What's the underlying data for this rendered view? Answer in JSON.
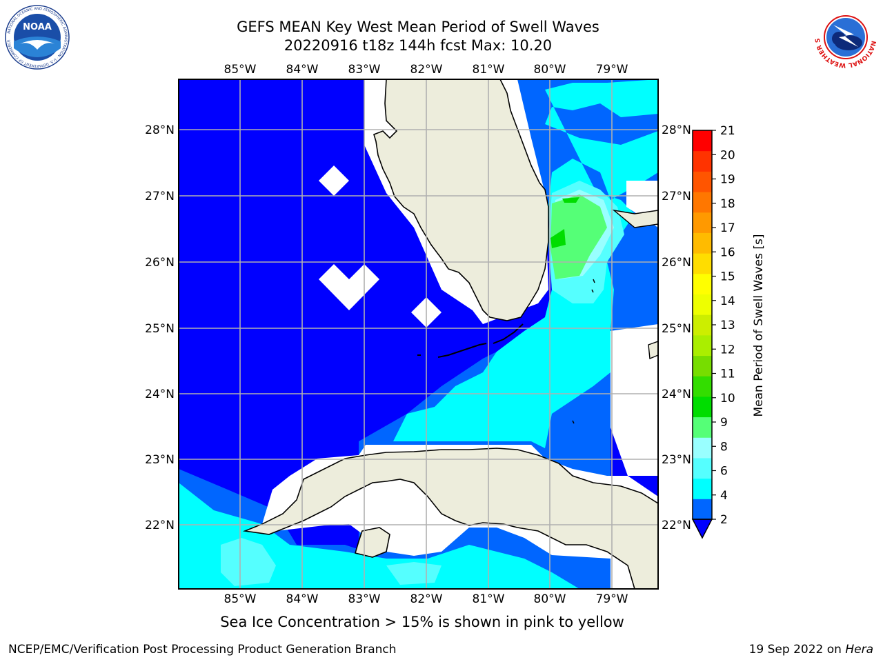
{
  "header": {
    "title_line1": "GEFS MEAN Key West Mean Period of Swell Waves",
    "title_line2": "20220916 t18z 144h fcst   Max: 10.20"
  },
  "map": {
    "lon_labels": [
      "85°W",
      "84°W",
      "83°W",
      "82°W",
      "81°W",
      "80°W",
      "79°W"
    ],
    "lat_labels": [
      "28°N",
      "27°N",
      "26°N",
      "25°N",
      "24°N",
      "23°N",
      "22°N"
    ],
    "ocean_colors": {
      "deep_blue": "#0000ff",
      "mid_blue": "#0066ff",
      "cyan": "#00ffff",
      "light_cyan": "#55ffff",
      "pale_cyan": "#99ffff",
      "green": "#55ff77",
      "bright_green": "#00dd00",
      "land": "#ededdc",
      "no_data": "#ffffff"
    }
  },
  "colorbar": {
    "label": "Mean Period of Swell Waves [s]",
    "ticks": [
      "21",
      "20",
      "19",
      "18",
      "17",
      "16",
      "15",
      "14",
      "13",
      "12",
      "11",
      "10",
      "9",
      "8",
      "6",
      "4",
      "2"
    ],
    "colors": [
      "#0066ff",
      "#00ffff",
      "#55ffff",
      "#99ffff",
      "#55ff77",
      "#00dd00",
      "#33dd00",
      "#77dd00",
      "#aaee00",
      "#ccee00",
      "#eeff00",
      "#ffff00",
      "#ffdd00",
      "#ffbb00",
      "#ff9900",
      "#ff7700",
      "#ff5500",
      "#ff3300",
      "#ff0000"
    ]
  },
  "notes": {
    "sea_ice": "Sea Ice Concentration > 15% is shown in pink to yellow"
  },
  "footer": {
    "left": "NCEP/EMC/Verification Post Processing Product Generation Branch",
    "right_date": "19 Sep 2022 on ",
    "right_host": "Hera"
  },
  "logos": {
    "noaa": "NOAA",
    "nws_ring": "NATIONAL WEATHER SERVICE"
  }
}
